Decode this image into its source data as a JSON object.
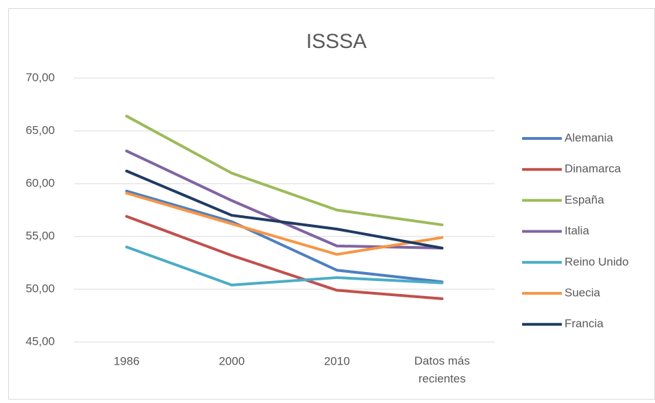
{
  "chart_data": {
    "type": "line",
    "title": "ISSSA",
    "categories": [
      "1986",
      "2000",
      "2010",
      "Datos más recientes"
    ],
    "series": [
      {
        "name": "Alemania",
        "color": "#4e7fc1",
        "values": [
          59.3,
          56.4,
          51.8,
          50.7
        ]
      },
      {
        "name": "Dinamarca",
        "color": "#c0504d",
        "values": [
          56.9,
          53.2,
          49.9,
          49.1
        ]
      },
      {
        "name": "España",
        "color": "#9bbb59",
        "values": [
          66.4,
          61.0,
          57.5,
          56.1
        ]
      },
      {
        "name": "Italia",
        "color": "#8064a2",
        "values": [
          63.1,
          58.4,
          54.1,
          53.9
        ]
      },
      {
        "name": "Reino Unido",
        "color": "#4bacc6",
        "values": [
          54.0,
          50.4,
          51.1,
          50.6
        ]
      },
      {
        "name": "Suecia",
        "color": "#f79646",
        "values": [
          59.1,
          56.2,
          53.3,
          54.9
        ]
      },
      {
        "name": "Francia",
        "color": "#1f3b63",
        "values": [
          61.2,
          57.0,
          55.7,
          53.9
        ]
      }
    ],
    "ylim": [
      45,
      70
    ],
    "yticks": [
      {
        "value": 45,
        "label": "45,00"
      },
      {
        "value": 50,
        "label": "50,00"
      },
      {
        "value": 55,
        "label": "55,00"
      },
      {
        "value": 60,
        "label": "60,00"
      },
      {
        "value": 65,
        "label": "65,00"
      },
      {
        "value": 70,
        "label": "70,00"
      }
    ],
    "grid": true,
    "legend": "right"
  }
}
